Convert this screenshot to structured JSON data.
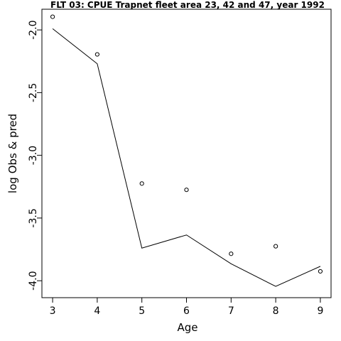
{
  "chart_data": {
    "type": "scatter",
    "title": "FLT 03: CPUE Trapnet fleet area 23, 42 and 47, year 1992",
    "xlabel": "Age",
    "ylabel": "log Obs & pred",
    "x": [
      3,
      4,
      5,
      6,
      7,
      8,
      9
    ],
    "xticks": [
      "3",
      "4",
      "5",
      "6",
      "7",
      "8",
      "9"
    ],
    "yticks": [
      "-2.0",
      "-2.5",
      "-3.0",
      "-3.5",
      "-4.0"
    ],
    "ytick_values": [
      -2.0,
      -2.5,
      -3.0,
      -3.5,
      -4.0
    ],
    "xlim": [
      2.76,
      9.24
    ],
    "ylim": [
      -4.135,
      -1.835
    ],
    "series": [
      {
        "kind": "points",
        "values": [
          -1.895,
          -2.195,
          -3.225,
          -3.275,
          -3.785,
          -3.725,
          -3.925
        ]
      },
      {
        "kind": "line",
        "values": [
          -1.99,
          -2.27,
          -3.74,
          -3.635,
          -3.865,
          -4.045,
          -3.885
        ]
      }
    ],
    "legend": "none",
    "grid": false
  }
}
